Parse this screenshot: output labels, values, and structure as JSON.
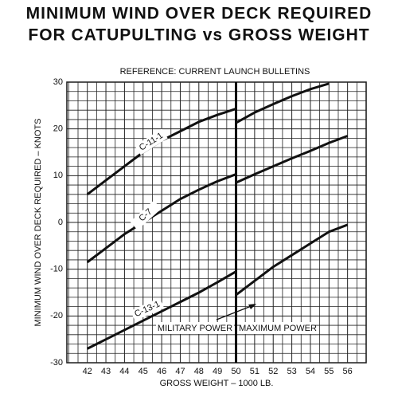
{
  "chart_data": {
    "type": "line",
    "title": [
      "MINIMUM WIND OVER DECK REQUIRED",
      "FOR CATUPULTING vs GROSS WEIGHT"
    ],
    "subtitle": "REFERENCE:  CURRENT LAUNCH BULLETINS",
    "x_label": "GROSS WEIGHT – 1000 LB.",
    "y_label": "MINIMUM WIND OVER DECK REQUIRED – KNOTS",
    "annotations": [
      "MILITARY POWER",
      "MAXIMUM POWER"
    ],
    "divider_x": 50,
    "x": [
      42,
      43,
      44,
      45,
      46,
      47,
      48,
      49,
      50,
      50,
      50,
      51,
      52,
      53,
      54,
      55,
      56
    ],
    "series": [
      {
        "name": "C-11-1",
        "color": "#111111",
        "values": [
          6,
          9,
          12,
          15,
          17.5,
          19.5,
          21.5,
          23,
          24.3,
          null,
          21.3,
          23.5,
          25.3,
          27,
          28.5,
          29.7,
          null
        ]
      },
      {
        "name": "C-7",
        "color": "#111111",
        "values": [
          -8.5,
          -5.5,
          -2.5,
          0,
          2.5,
          5,
          7,
          8.8,
          10.3,
          null,
          8.5,
          10.3,
          12,
          13.7,
          15.3,
          17,
          18.5
        ]
      },
      {
        "name": "C-13-1",
        "color": "#111111",
        "values": [
          -27,
          -25,
          -23,
          -21,
          -19,
          -17,
          -15,
          -12.8,
          -10.5,
          null,
          -15.5,
          -12.5,
          -9.5,
          -7,
          -4.5,
          -2,
          -0.5
        ]
      }
    ],
    "xlim": [
      40.9,
      57
    ],
    "ylim": [
      -30,
      30
    ],
    "xticks": [
      42,
      43,
      44,
      45,
      46,
      47,
      48,
      49,
      50,
      51,
      52,
      53,
      54,
      55,
      56
    ],
    "yticks": [
      -30,
      -20,
      -10,
      0,
      10,
      20,
      30
    ],
    "grid": true,
    "grid_subdivisions": {
      "x": 2,
      "y": 5
    }
  }
}
